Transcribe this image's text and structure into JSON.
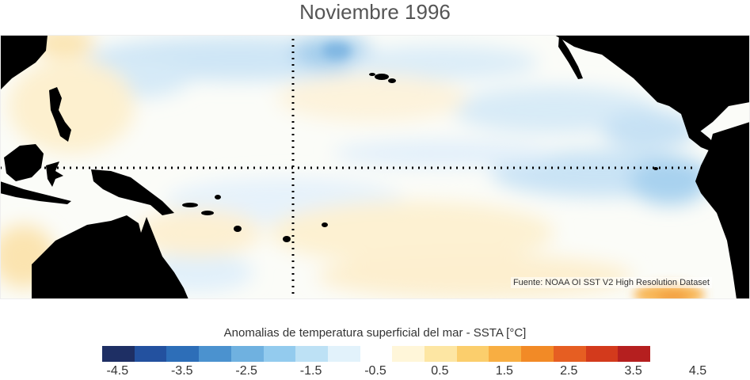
{
  "title": "Noviembre 1996",
  "source_note": "Fuente: NOAA OI SST V2 High Resolution Dataset",
  "colorbar": {
    "label": "Anomalias de temperatura superficial del mar - SSTA  [°C]",
    "colors": [
      "#1e2f64",
      "#23519f",
      "#2d6eb8",
      "#4b92cf",
      "#6fb1e0",
      "#93cbee",
      "#bde1f5",
      "#e2f2fb",
      "#ffffff",
      "#fff6d9",
      "#fde6a3",
      "#fbce6c",
      "#f8ae42",
      "#f28a26",
      "#e65e22",
      "#d33a1c",
      "#b51f1f"
    ],
    "ticks": [
      "-4.5",
      "-3.5",
      "-2.5",
      "-1.5",
      "-0.5",
      "0.5",
      "1.5",
      "2.5",
      "3.5",
      "4.5"
    ]
  },
  "map": {
    "land_color": "#000000",
    "reference_lines": [
      "equator",
      "180° meridian"
    ]
  }
}
